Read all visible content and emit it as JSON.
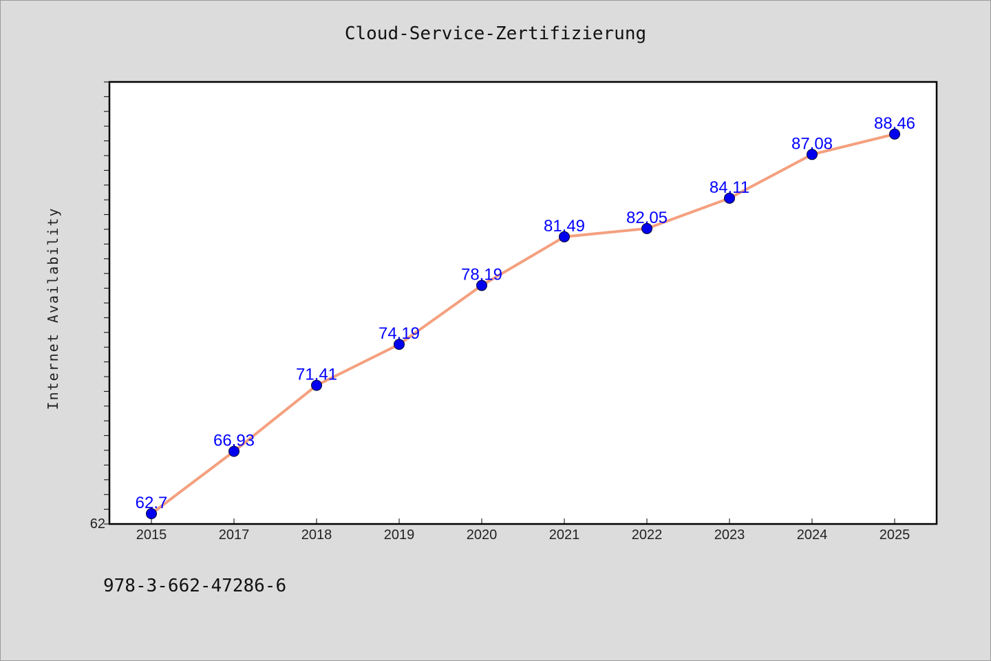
{
  "chart_data": {
    "type": "line",
    "title": "Cloud-Service-Zertifizierung",
    "ylabel": "Internet Availability",
    "xlabel": "",
    "categories": [
      "2015",
      "2017",
      "2018",
      "2019",
      "2020",
      "2021",
      "2022",
      "2023",
      "2024",
      "2025"
    ],
    "series": [
      {
        "values": [
          62.7,
          66.93,
          71.41,
          74.19,
          78.19,
          81.49,
          82.05,
          84.11,
          87.08,
          88.46
        ],
        "data_labels": [
          "62.7",
          "66.93",
          "71.41",
          "74.19",
          "78.19",
          "81.49",
          "82.05",
          "84.11",
          "87.08",
          "88.46"
        ]
      }
    ],
    "ylim": [
      62,
      92
    ],
    "y_tick_labels": [
      "62"
    ],
    "grid": false,
    "colors": {
      "line": "#f4a07f",
      "marker": "#0000ee",
      "data_label": "#0000ff",
      "plot_background": "#ffffff",
      "figure_background": "#dcdcdc"
    }
  },
  "footer_text": "978-3-662-47286-6"
}
